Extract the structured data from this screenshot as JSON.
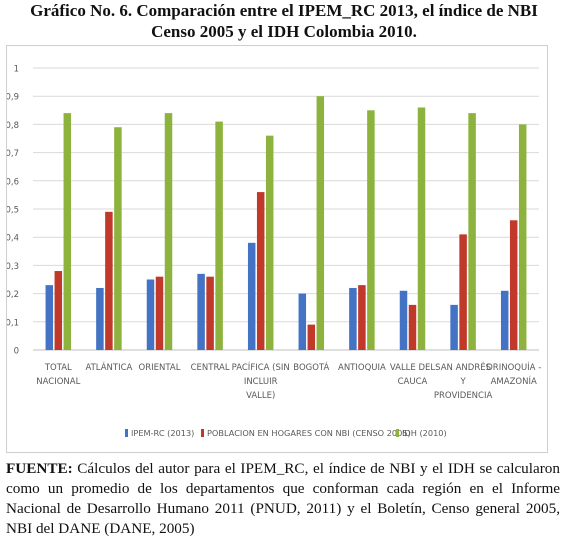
{
  "title": {
    "line1": "Gráfico No. 6. Comparación entre el IPEM_RC 2013, el índice de NBI",
    "line2": "Censo 2005 y el IDH Colombia 2010."
  },
  "chart_data": {
    "type": "bar",
    "categories": [
      [
        "TOTAL",
        "NACIONAL"
      ],
      [
        "ATLÁNTICA"
      ],
      [
        "ORIENTAL"
      ],
      [
        "CENTRAL"
      ],
      [
        "PACÍFICA (SIN",
        "INCLUIR",
        "VALLE)"
      ],
      [
        "BOGOTÁ"
      ],
      [
        "ANTIOQUIA"
      ],
      [
        "VALLE DEL",
        "CAUCA"
      ],
      [
        "SAN ANDRÉS",
        "Y",
        "PROVIDENCIA"
      ],
      [
        "ORINOQUÍA -",
        "AMAZONÍA"
      ]
    ],
    "series": [
      {
        "name": "IPEM-RC (2013)",
        "color": "#4472C4",
        "values": [
          0.23,
          0.22,
          0.25,
          0.27,
          0.38,
          0.2,
          0.22,
          0.21,
          0.16,
          0.21
        ]
      },
      {
        "name": "POBLACION EN HOGARES CON NBI (CENSO 2005)",
        "color": "#C0392B",
        "values": [
          0.28,
          0.49,
          0.26,
          0.26,
          0.56,
          0.09,
          0.23,
          0.16,
          0.41,
          0.46
        ]
      },
      {
        "name": "IDH (2010)",
        "color": "#8DB33E",
        "values": [
          0.84,
          0.79,
          0.84,
          0.81,
          0.76,
          0.9,
          0.85,
          0.86,
          0.84,
          0.8
        ]
      }
    ],
    "yticks": [
      "0",
      "0,1",
      "0,2",
      "0,3",
      "0,4",
      "0,5",
      "0,6",
      "0,7",
      "0,8",
      "0,9",
      "1"
    ],
    "ylim": [
      0,
      1
    ],
    "grid": true,
    "legend_position": "bottom"
  },
  "source": {
    "label": "FUENTE:",
    "text": " Cálculos del autor para el IPEM_RC, el índice de NBI y el IDH se calcularon como un promedio de los departamentos que conforman cada región en el Informe Nacional de Desarrollo Humano 2011 (PNUD, 2011) y el Boletín, Censo general 2005, NBI del DANE (DANE, 2005)"
  }
}
